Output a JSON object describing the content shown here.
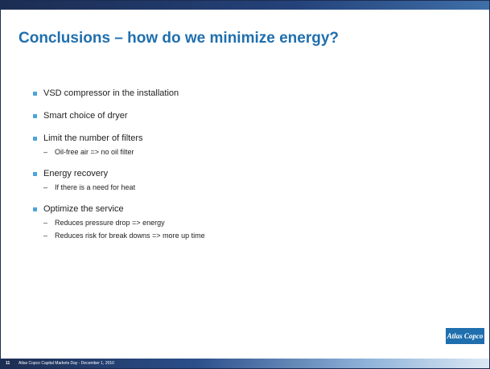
{
  "header": {
    "title": "Conclusions – how do we minimize energy?"
  },
  "bullets": [
    {
      "text": "VSD compressor in the installation",
      "subs": []
    },
    {
      "text": "Smart choice of dryer",
      "subs": []
    },
    {
      "text": "Limit the number of filters",
      "subs": [
        "Oil-free air => no oil filter"
      ]
    },
    {
      "text": "Energy recovery",
      "subs": [
        "If there is a need for heat"
      ]
    },
    {
      "text": "Optimize the service",
      "subs": [
        "Reduces pressure drop => energy",
        "Reduces risk for break downs => more up time"
      ]
    }
  ],
  "logo": {
    "text": "Atlas Copco"
  },
  "footer": {
    "page": "11",
    "text": "Atlas Copco Capital Markets Day - December 1, 2010"
  }
}
